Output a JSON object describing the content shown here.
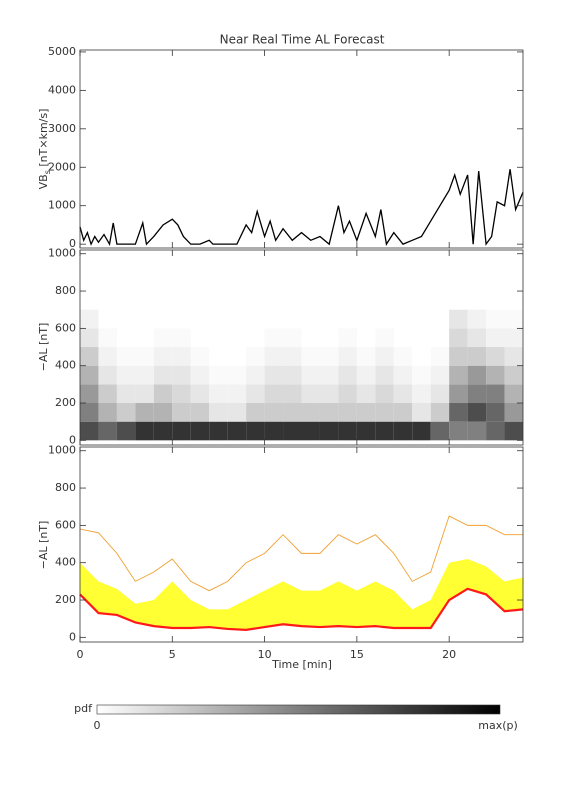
{
  "chart_data": [
    {
      "type": "line",
      "title": "Near Real Time AL Forecast",
      "ylabel": "VB",
      "ylabel_sub": "s",
      "ylabel_unit": " [nT×km/s]",
      "xlim": [
        0,
        24
      ],
      "ylim": [
        -100,
        5050
      ],
      "yticks": [
        0,
        1000,
        2000,
        3000,
        4000,
        5000
      ],
      "color": "#000000",
      "x": [
        0,
        0.2,
        0.4,
        0.6,
        0.8,
        1.0,
        1.3,
        1.6,
        1.8,
        2.0,
        3.0,
        3.4,
        3.6,
        4.0,
        4.5,
        5.0,
        5.3,
        5.6,
        6.0,
        6.5,
        7.0,
        7.2,
        8.5,
        9.0,
        9.3,
        9.6,
        10.0,
        10.3,
        10.6,
        11.0,
        11.5,
        12.0,
        12.5,
        13.0,
        13.5,
        14.0,
        14.3,
        14.6,
        15.0,
        15.5,
        16.0,
        16.3,
        16.6,
        17.0,
        17.5,
        18.0,
        18.5,
        19.0,
        19.5,
        20.0,
        20.3,
        20.6,
        21.0,
        21.3,
        21.6,
        22.0,
        22.3,
        22.6,
        23.0,
        23.3,
        23.6,
        24.0
      ],
      "values": [
        450,
        100,
        300,
        0,
        200,
        50,
        250,
        0,
        550,
        0,
        0,
        550,
        0,
        200,
        500,
        650,
        500,
        200,
        0,
        0,
        100,
        0,
        0,
        500,
        300,
        850,
        200,
        600,
        100,
        400,
        100,
        300,
        100,
        200,
        0,
        1000,
        300,
        600,
        100,
        800,
        200,
        900,
        0,
        300,
        0,
        100,
        200,
        600,
        1000,
        1400,
        1800,
        1300,
        1800,
        0,
        1900,
        0,
        200,
        1100,
        1000,
        1950,
        900,
        1350
      ]
    },
    {
      "type": "heatmap",
      "ylabel": "−AL [nT]",
      "xlim": [
        0,
        24
      ],
      "ylim": [
        -25,
        1020
      ],
      "yticks": [
        0,
        200,
        400,
        600,
        800,
        1000
      ],
      "xbins": [
        0,
        1,
        2,
        3,
        4,
        5,
        6,
        7,
        8,
        9,
        10,
        11,
        12,
        13,
        14,
        15,
        16,
        17,
        18,
        19,
        20,
        21,
        22,
        23,
        24
      ],
      "ybins": [
        0,
        100,
        200,
        300,
        400,
        500,
        600,
        700
      ],
      "z": [
        [
          0.7,
          0.6,
          0.7,
          0.8,
          0.8,
          0.8,
          0.8,
          0.8,
          0.8,
          0.8,
          0.8,
          0.8,
          0.8,
          0.8,
          0.8,
          0.8,
          0.8,
          0.8,
          0.8,
          0.6,
          0.5,
          0.5,
          0.6,
          0.7
        ],
        [
          0.5,
          0.3,
          0.2,
          0.3,
          0.3,
          0.2,
          0.2,
          0.1,
          0.1,
          0.2,
          0.2,
          0.2,
          0.2,
          0.2,
          0.2,
          0.2,
          0.2,
          0.2,
          0.1,
          0.2,
          0.6,
          0.7,
          0.6,
          0.4
        ],
        [
          0.4,
          0.2,
          0.1,
          0.1,
          0.2,
          0.15,
          0.1,
          0.05,
          0.05,
          0.1,
          0.15,
          0.15,
          0.1,
          0.1,
          0.15,
          0.1,
          0.15,
          0.1,
          0.05,
          0.1,
          0.4,
          0.5,
          0.5,
          0.3
        ],
        [
          0.3,
          0.1,
          0.05,
          0.05,
          0.1,
          0.1,
          0.05,
          0.02,
          0.02,
          0.05,
          0.1,
          0.1,
          0.05,
          0.05,
          0.1,
          0.05,
          0.1,
          0.05,
          0.02,
          0.05,
          0.3,
          0.4,
          0.3,
          0.2
        ],
        [
          0.2,
          0.05,
          0.02,
          0.02,
          0.05,
          0.05,
          0.02,
          0,
          0,
          0.02,
          0.05,
          0.05,
          0.02,
          0.02,
          0.05,
          0.02,
          0.05,
          0.02,
          0,
          0.02,
          0.2,
          0.2,
          0.15,
          0.1
        ],
        [
          0.1,
          0.02,
          0,
          0,
          0.02,
          0.02,
          0,
          0,
          0,
          0,
          0.02,
          0.02,
          0,
          0,
          0.02,
          0,
          0.02,
          0,
          0,
          0,
          0.15,
          0.1,
          0.05,
          0.05
        ],
        [
          0.05,
          0,
          0,
          0,
          0,
          0,
          0,
          0,
          0,
          0,
          0,
          0,
          0,
          0,
          0,
          0,
          0,
          0,
          0,
          0,
          0.1,
          0.05,
          0.02,
          0.02
        ]
      ]
    },
    {
      "type": "band",
      "ylabel": "−AL [nT]",
      "xlabel": "Time [min]",
      "xlim": [
        0,
        24
      ],
      "ylim": [
        -25,
        1020
      ],
      "yticks": [
        0,
        200,
        400,
        600,
        800,
        1000
      ],
      "xticks": [
        0,
        5,
        10,
        15,
        20
      ],
      "x": [
        0,
        1,
        2,
        3,
        4,
        5,
        6,
        7,
        8,
        9,
        10,
        11,
        12,
        13,
        14,
        15,
        16,
        17,
        18,
        19,
        20,
        21,
        22,
        23,
        24
      ],
      "fill_between": [
        0,
        1
      ],
      "series": [
        {
          "color": "#ff1a1a",
          "values": [
            230,
            130,
            120,
            80,
            60,
            50,
            50,
            55,
            45,
            40,
            55,
            70,
            60,
            55,
            60,
            55,
            60,
            50,
            50,
            50,
            200,
            260,
            230,
            140,
            150
          ]
        },
        {
          "color": "#ffff33",
          "values": [
            400,
            300,
            260,
            180,
            200,
            300,
            200,
            150,
            150,
            200,
            250,
            300,
            250,
            250,
            300,
            250,
            300,
            250,
            150,
            200,
            400,
            420,
            380,
            300,
            320
          ]
        },
        {
          "color": "#f0a030",
          "values": [
            580,
            560,
            450,
            300,
            350,
            420,
            300,
            250,
            300,
            400,
            450,
            550,
            450,
            450,
            550,
            500,
            550,
            450,
            300,
            350,
            650,
            600,
            600,
            550,
            550
          ]
        }
      ]
    }
  ],
  "colorbar": {
    "label": "pdf",
    "min_label": "0",
    "max_label": "max(p)"
  }
}
